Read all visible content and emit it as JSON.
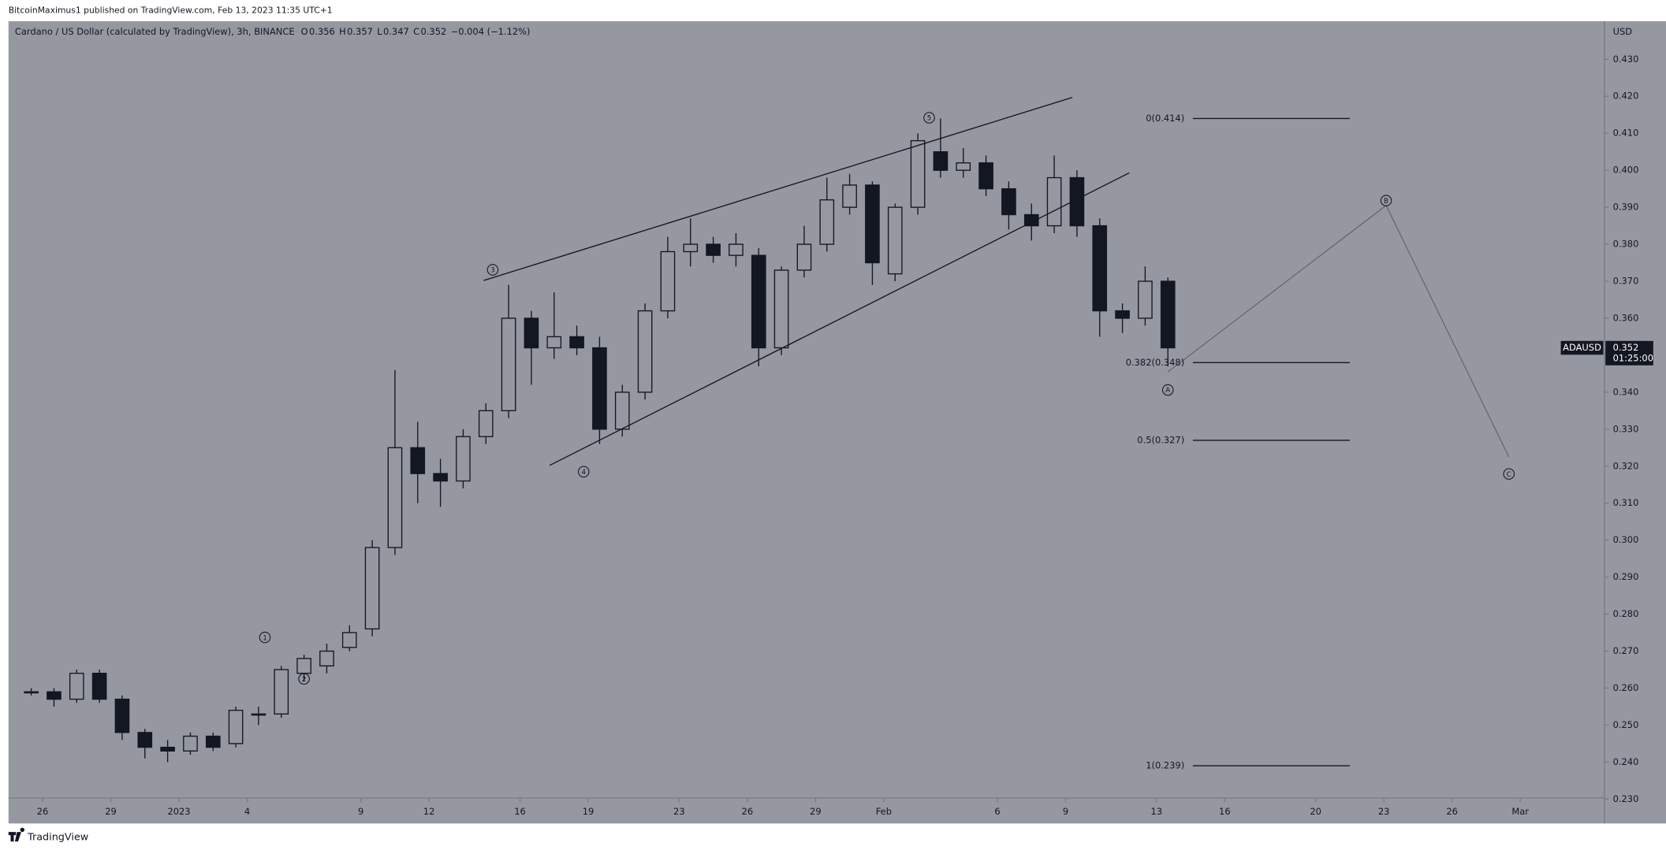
{
  "header": {
    "publisher": "BitcoinMaximus1 published on TradingView.com, Feb 13, 2023 11:35 UTC+1"
  },
  "footer": {
    "brand": "TradingView"
  },
  "chart_data": {
    "type": "candlestick",
    "title": "Cardano / US Dollar (calculated by TradingView), 3h, BINANCE",
    "ohlc": [
      {
        "label": "O",
        "value": 0.356
      },
      {
        "label": "H",
        "value": 0.357
      },
      {
        "label": "L",
        "value": 0.347
      },
      {
        "label": "C",
        "value": 0.352
      }
    ],
    "change": "−0.004 (−1.12%)",
    "currency": "USD",
    "last": {
      "symbol": "ADAUSD",
      "price": 0.352,
      "countdown": "01:25:00"
    },
    "color": "#131722",
    "x": [
      -7,
      -6,
      -5,
      -4,
      -3,
      -2,
      -1,
      0,
      1,
      2,
      3,
      4,
      5,
      6,
      7,
      8,
      9,
      10,
      11,
      12,
      13,
      14,
      15,
      16,
      17,
      18,
      19,
      20,
      21,
      22,
      23,
      24,
      25,
      26,
      27,
      28,
      29,
      30,
      31,
      32,
      33,
      34,
      35,
      36,
      37,
      38,
      39,
      40,
      41,
      42,
      43
    ],
    "open": [
      0.259,
      0.259,
      0.257,
      0.264,
      0.257,
      0.248,
      0.244,
      0.243,
      0.247,
      0.245,
      0.253,
      0.253,
      0.264,
      0.266,
      0.271,
      0.276,
      0.298,
      0.325,
      0.318,
      0.316,
      0.328,
      0.335,
      0.36,
      0.352,
      0.355,
      0.352,
      0.33,
      0.34,
      0.362,
      0.378,
      0.38,
      0.377,
      0.377,
      0.352,
      0.373,
      0.38,
      0.39,
      0.396,
      0.372,
      0.39,
      0.405,
      0.4,
      0.402,
      0.395,
      0.388,
      0.385,
      0.398,
      0.385,
      0.362,
      0.36,
      0.37
    ],
    "high": [
      0.26,
      0.26,
      0.265,
      0.265,
      0.258,
      0.249,
      0.246,
      0.248,
      0.248,
      0.255,
      0.255,
      0.266,
      0.269,
      0.272,
      0.277,
      0.3,
      0.346,
      0.332,
      0.322,
      0.33,
      0.337,
      0.369,
      0.362,
      0.367,
      0.358,
      0.355,
      0.342,
      0.364,
      0.382,
      0.387,
      0.382,
      0.383,
      0.379,
      0.374,
      0.385,
      0.398,
      0.399,
      0.397,
      0.391,
      0.41,
      0.414,
      0.406,
      0.404,
      0.397,
      0.391,
      0.404,
      0.4,
      0.387,
      0.364,
      0.374,
      0.371
    ],
    "low": [
      0.258,
      0.255,
      0.256,
      0.256,
      0.246,
      0.241,
      0.24,
      0.242,
      0.243,
      0.244,
      0.25,
      0.252,
      0.262,
      0.264,
      0.27,
      0.274,
      0.296,
      0.31,
      0.309,
      0.314,
      0.326,
      0.333,
      0.342,
      0.349,
      0.35,
      0.326,
      0.328,
      0.338,
      0.36,
      0.374,
      0.375,
      0.374,
      0.347,
      0.35,
      0.371,
      0.378,
      0.388,
      0.369,
      0.37,
      0.388,
      0.398,
      0.398,
      0.393,
      0.384,
      0.381,
      0.383,
      0.382,
      0.355,
      0.356,
      0.358,
      0.347
    ],
    "close": [
      0.259,
      0.257,
      0.264,
      0.257,
      0.248,
      0.244,
      0.243,
      0.247,
      0.244,
      0.254,
      0.253,
      0.265,
      0.268,
      0.27,
      0.275,
      0.298,
      0.325,
      0.318,
      0.316,
      0.328,
      0.335,
      0.36,
      0.352,
      0.355,
      0.352,
      0.33,
      0.34,
      0.362,
      0.378,
      0.38,
      0.377,
      0.38,
      0.352,
      0.373,
      0.38,
      0.392,
      0.396,
      0.375,
      0.39,
      0.408,
      0.4,
      0.402,
      0.395,
      0.388,
      0.385,
      0.398,
      0.385,
      0.362,
      0.36,
      0.37,
      0.352
    ],
    "xlim": [
      -7.5,
      62.7
    ],
    "ylim": [
      0.2234,
      0.4403
    ],
    "xticks": [
      {
        "value": -6,
        "label": "26"
      },
      {
        "value": -3,
        "label": "29"
      },
      {
        "value": 0,
        "label": "2023"
      },
      {
        "value": 3,
        "label": "4"
      },
      {
        "value": 8,
        "label": "9"
      },
      {
        "value": 11,
        "label": "12"
      },
      {
        "value": 15,
        "label": "16"
      },
      {
        "value": 18,
        "label": "19"
      },
      {
        "value": 22,
        "label": "23"
      },
      {
        "value": 25,
        "label": "26"
      },
      {
        "value": 28,
        "label": "29"
      },
      {
        "value": 31,
        "label": "Feb"
      },
      {
        "value": 36,
        "label": "6"
      },
      {
        "value": 39,
        "label": "9"
      },
      {
        "value": 43,
        "label": "13"
      },
      {
        "value": 46,
        "label": "16"
      },
      {
        "value": 50,
        "label": "20"
      },
      {
        "value": 53,
        "label": "23"
      },
      {
        "value": 56,
        "label": "26"
      },
      {
        "value": 59,
        "label": "Mar"
      }
    ],
    "yticks": [
      {
        "value": 0.23,
        "label": "0.230"
      },
      {
        "value": 0.24,
        "label": "0.240"
      },
      {
        "value": 0.25,
        "label": "0.250"
      },
      {
        "value": 0.26,
        "label": "0.260"
      },
      {
        "value": 0.27,
        "label": "0.270"
      },
      {
        "value": 0.28,
        "label": "0.280"
      },
      {
        "value": 0.29,
        "label": "0.290"
      },
      {
        "value": 0.3,
        "label": "0.300"
      },
      {
        "value": 0.31,
        "label": "0.310"
      },
      {
        "value": 0.32,
        "label": "0.320"
      },
      {
        "value": 0.33,
        "label": "0.330"
      },
      {
        "value": 0.34,
        "label": "0.340"
      },
      {
        "value": 0.35,
        "label": "0.350"
      },
      {
        "value": 0.36,
        "label": "0.360"
      },
      {
        "value": 0.37,
        "label": "0.370"
      },
      {
        "value": 0.38,
        "label": "0.380"
      },
      {
        "value": 0.39,
        "label": "0.390"
      },
      {
        "value": 0.4,
        "label": "0.400"
      },
      {
        "value": 0.41,
        "label": "0.410"
      },
      {
        "value": 0.42,
        "label": "0.420"
      },
      {
        "value": 0.43,
        "label": "0.430"
      }
    ],
    "fib_levels": [
      {
        "value": 0.414,
        "label": "0(0.414)"
      },
      {
        "value": 0.348,
        "label": "0.382(0.348)"
      },
      {
        "value": 0.327,
        "label": "0.5(0.327)"
      },
      {
        "value": 0.239,
        "label": "1(0.239)"
      }
    ],
    "fib_xlim": [
      44.6,
      51.5
    ],
    "trend_lines": [
      {
        "x": [
          13.4,
          39.3
        ],
        "y": [
          0.3702,
          0.4197
        ]
      },
      {
        "x": [
          16.3,
          41.8
        ],
        "y": [
          0.3202,
          0.3993
        ]
      },
      {
        "x": [
          43.5,
          53.1,
          58.5
        ],
        "y": [
          0.3455,
          0.3905,
          0.3225
        ]
      }
    ],
    "wave_labels": [
      {
        "label": "1",
        "x": 3.78,
        "y": 0.2737
      },
      {
        "label": "2",
        "x": 5.5,
        "y": 0.2625
      },
      {
        "label": "3",
        "x": 13.8,
        "y": 0.3731
      },
      {
        "label": "4",
        "x": 17.8,
        "y": 0.3185
      },
      {
        "label": "5",
        "x": 33.0,
        "y": 0.4142
      },
      {
        "label": "A",
        "x": 43.5,
        "y": 0.3406
      },
      {
        "label": "B",
        "x": 53.1,
        "y": 0.3918
      },
      {
        "label": "C",
        "x": 58.5,
        "y": 0.3179
      }
    ]
  }
}
